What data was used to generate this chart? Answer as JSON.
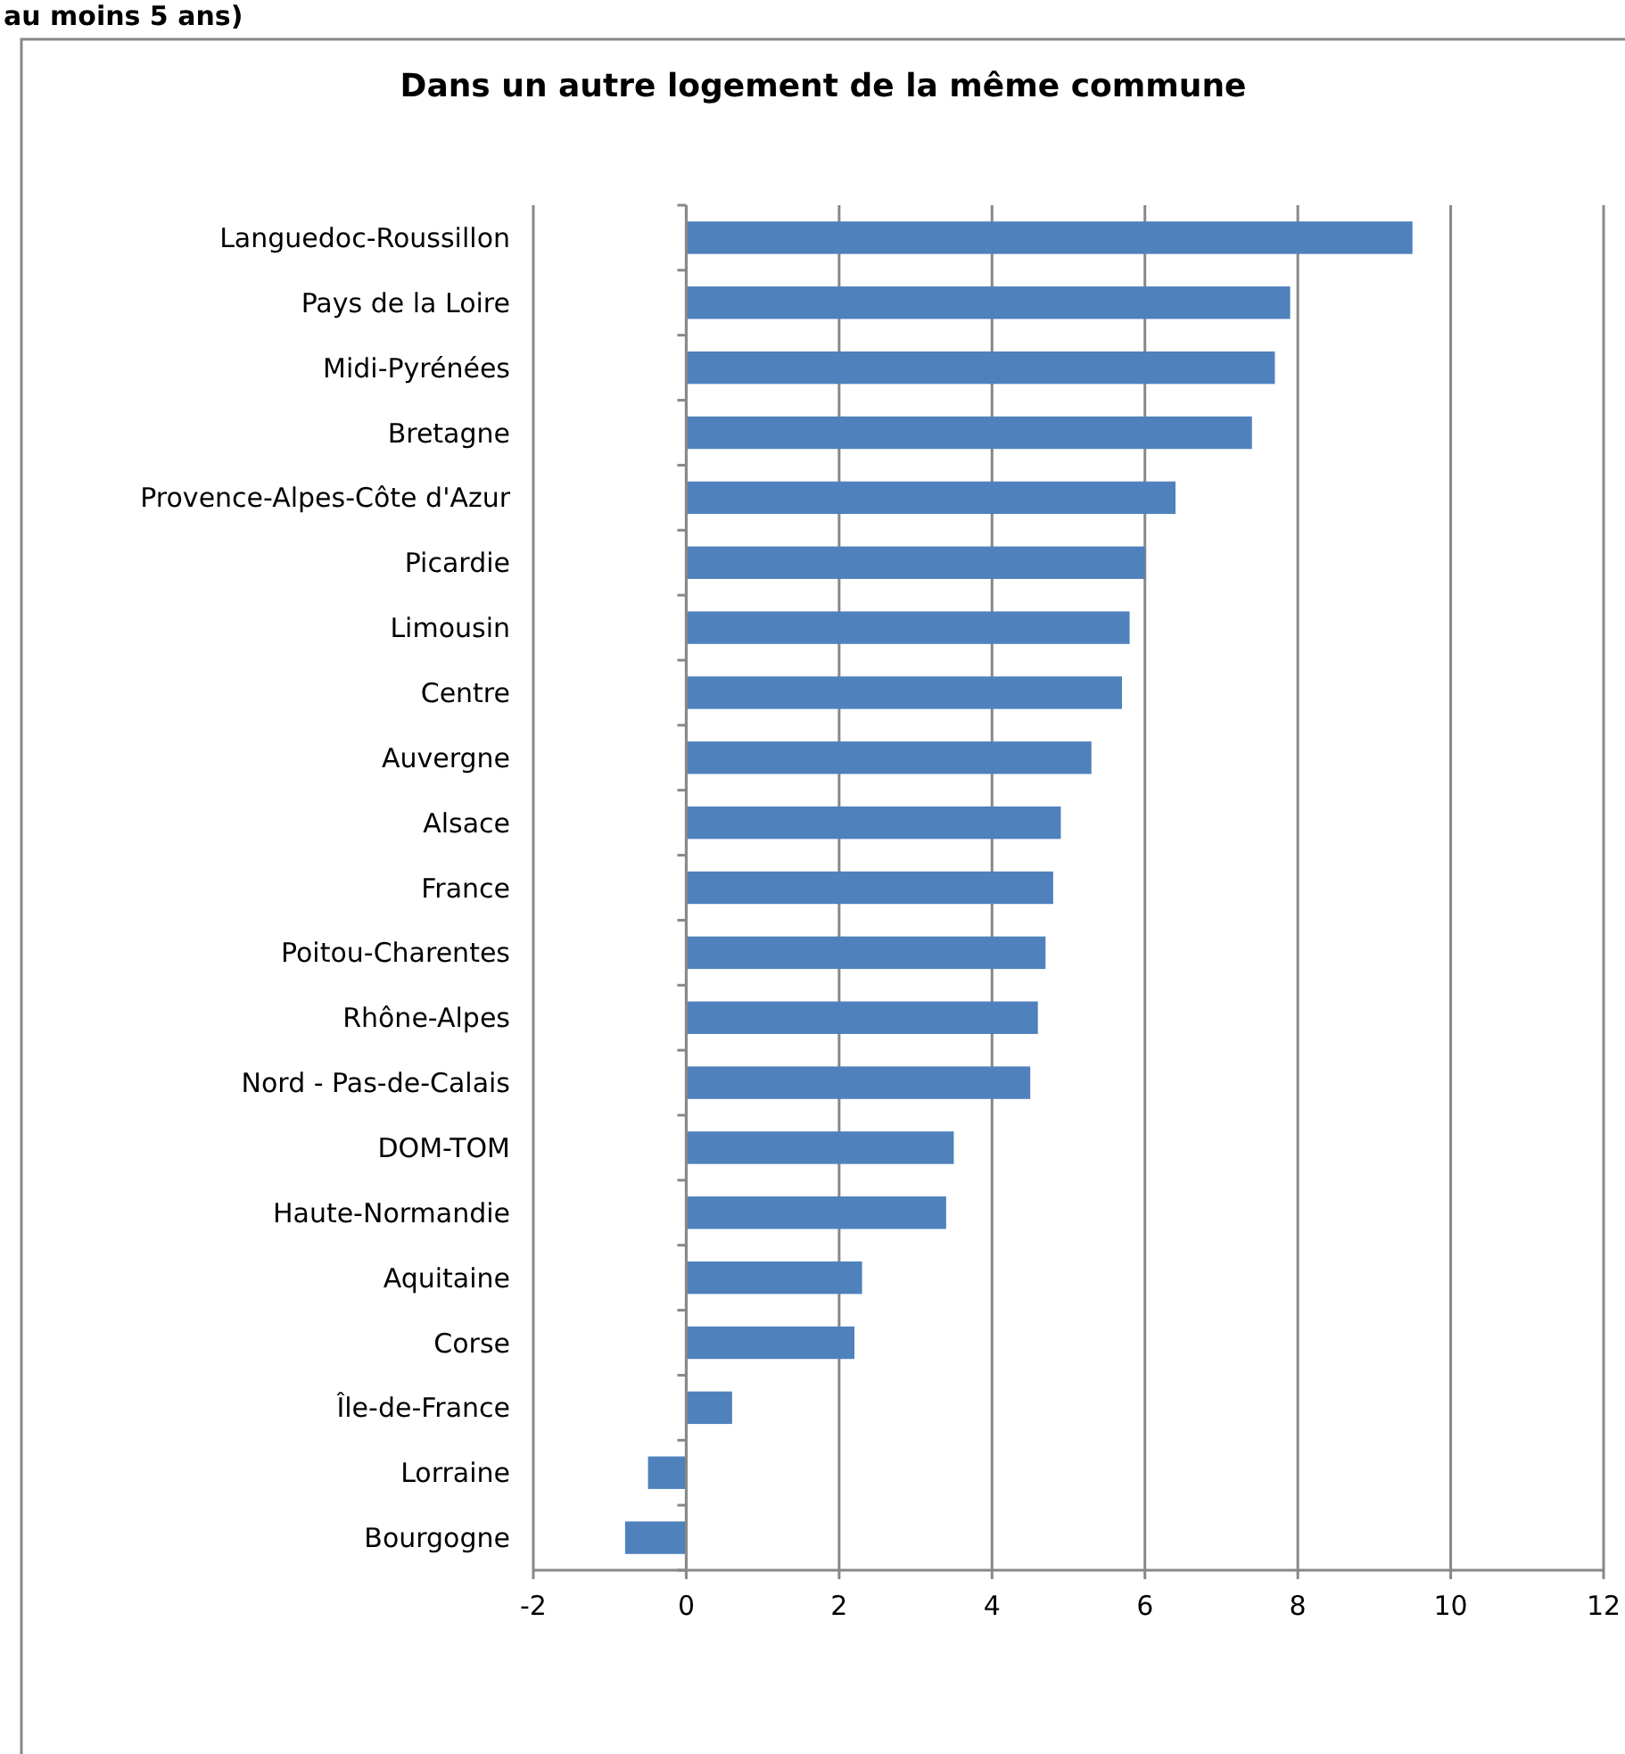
{
  "chart_data": {
    "type": "bar",
    "orientation": "horizontal",
    "title": "Dans un autre logement de la même commune",
    "annotations": [
      "au moins 5 ans)"
    ],
    "categories": [
      "Languedoc-Roussillon",
      "Pays de la Loire",
      "Midi-Pyrénées",
      "Bretagne",
      "Provence-Alpes-Côte d'Azur",
      "Picardie",
      "Limousin",
      "Centre",
      "Auvergne",
      "Alsace",
      "France",
      "Poitou-Charentes",
      "Rhône-Alpes",
      "Nord - Pas-de-Calais",
      "DOM-TOM",
      "Haute-Normandie",
      "Aquitaine",
      "Corse",
      "Île-de-France",
      "Lorraine",
      "Bourgogne"
    ],
    "values": [
      9.5,
      7.9,
      7.7,
      7.4,
      6.4,
      6.0,
      5.8,
      5.7,
      5.3,
      4.9,
      4.8,
      4.7,
      4.6,
      4.5,
      3.5,
      3.4,
      2.3,
      2.2,
      0.6,
      -0.5,
      -0.8
    ],
    "color": "#4f81bd",
    "xlim": [
      -2,
      12
    ],
    "xticks": [
      -2,
      0,
      2,
      4,
      6,
      8,
      10,
      12
    ],
    "grid": "x"
  }
}
